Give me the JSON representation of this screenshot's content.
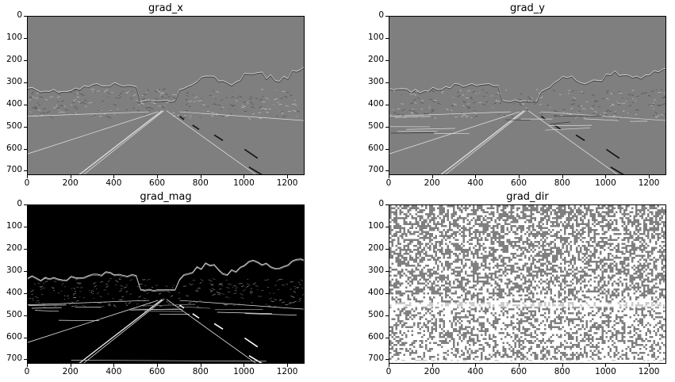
{
  "panels": [
    {
      "id": "grad_x",
      "title": "grad_x",
      "style": "gray-x"
    },
    {
      "id": "grad_y",
      "title": "grad_y",
      "style": "gray-y"
    },
    {
      "id": "grad_mag",
      "title": "grad_mag",
      "style": "black-mag"
    },
    {
      "id": "grad_dir",
      "title": "grad_dir",
      "style": "noise-dir"
    }
  ],
  "axes": {
    "x_ticks": [
      "0",
      "200",
      "400",
      "600",
      "800",
      "1000",
      "1200"
    ],
    "x_values": [
      0,
      200,
      400,
      600,
      800,
      1000,
      1200
    ],
    "y_ticks": [
      "0",
      "100",
      "200",
      "300",
      "400",
      "500",
      "600",
      "700"
    ],
    "y_values": [
      0,
      100,
      200,
      300,
      400,
      500,
      600,
      700
    ],
    "x_range": [
      0,
      1280
    ],
    "y_range": [
      0,
      720
    ]
  },
  "colors": {
    "gray_bg": "#7f7f7f",
    "black_bg": "#000000",
    "edge_light": "#dcdcdc",
    "edge_dark": "#3a3a3a"
  }
}
